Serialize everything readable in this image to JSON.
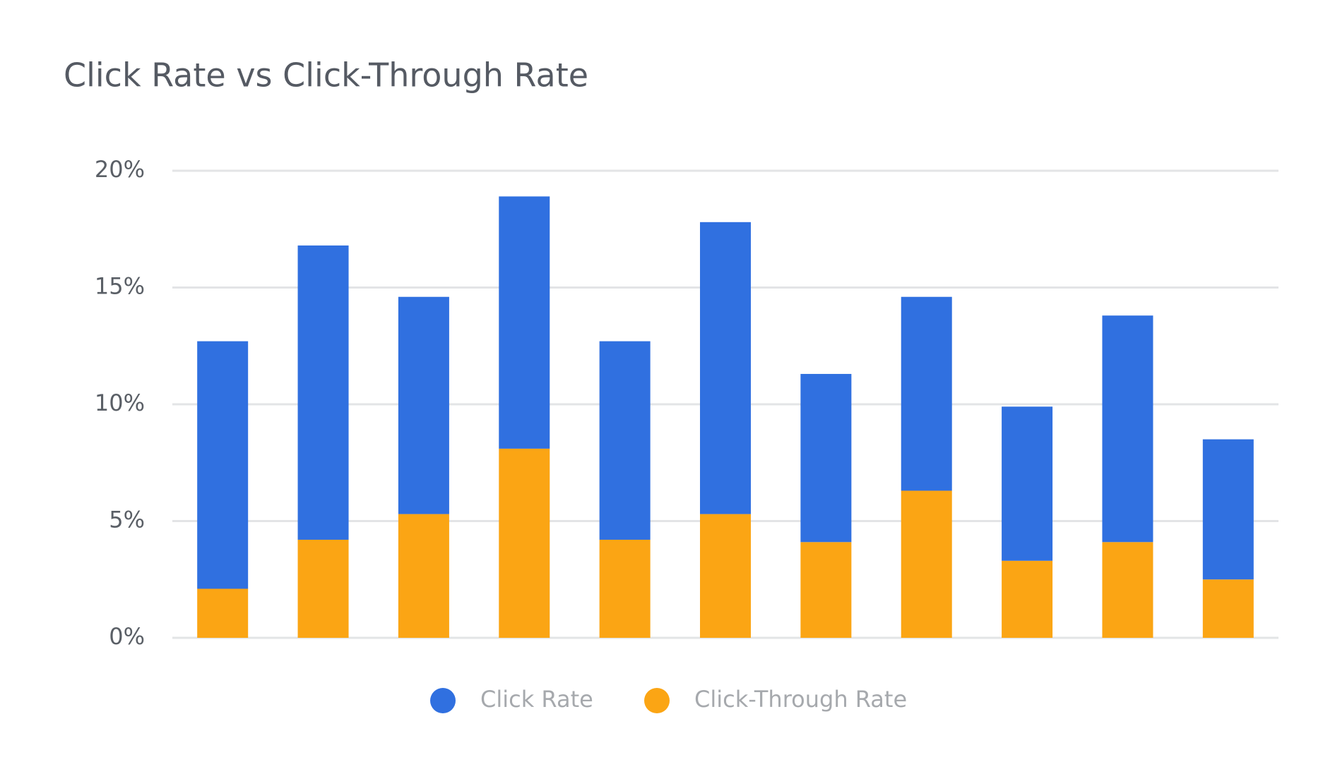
{
  "chart_data": {
    "type": "stacked_bar",
    "title": "Click Rate vs Click-Through Rate",
    "categories": [
      null,
      null,
      null,
      null,
      null,
      null,
      null,
      null,
      null,
      null,
      null
    ],
    "series": [
      {
        "name": "Click Rate",
        "color": "#3070e0",
        "values": [
          10.6,
          12.6,
          9.3,
          10.8,
          8.5,
          12.5,
          7.2,
          8.3,
          6.6,
          9.7,
          6.0
        ]
      },
      {
        "name": "Click-Through Rate",
        "color": "#fba514",
        "values": [
          2.1,
          4.2,
          5.3,
          8.1,
          4.2,
          5.3,
          4.1,
          6.3,
          3.3,
          4.1,
          2.5
        ]
      }
    ],
    "ylim": [
      0,
      20
    ],
    "yticks": [
      {
        "value": 0,
        "label": "0%"
      },
      {
        "value": 5,
        "label": "5%"
      },
      {
        "value": 10,
        "label": "10%"
      },
      {
        "value": 15,
        "label": "15%"
      },
      {
        "value": 20,
        "label": "20%"
      }
    ],
    "grid": true
  }
}
